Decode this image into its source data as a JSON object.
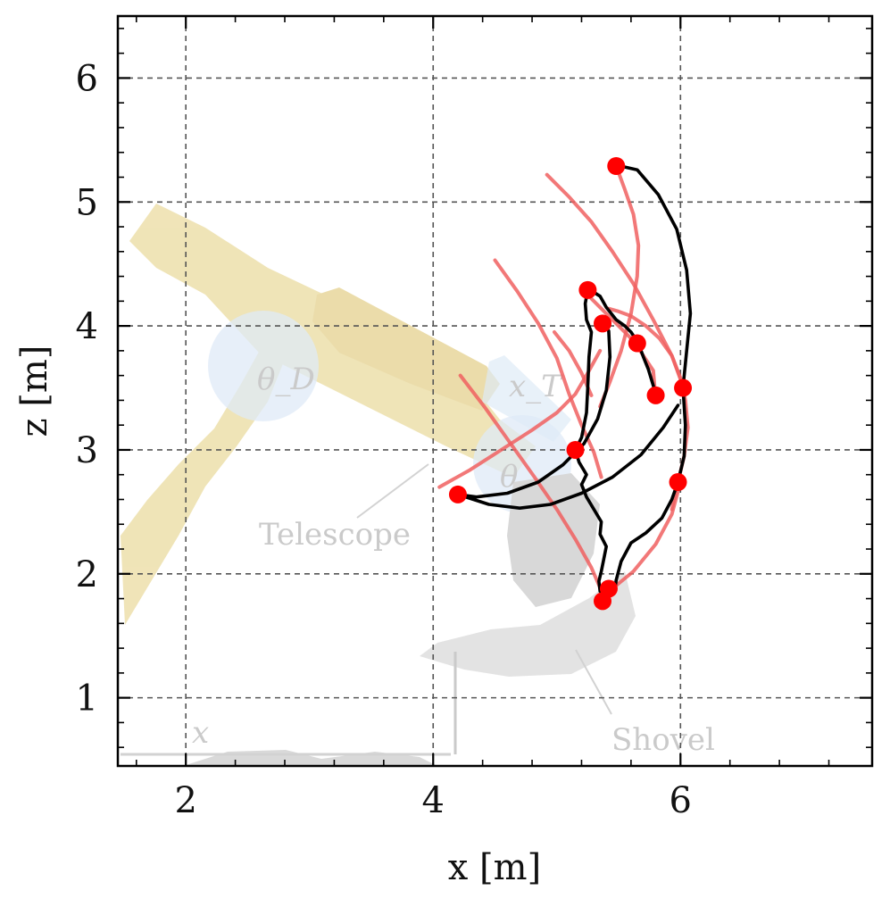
{
  "chart_data": {
    "type": "line",
    "xlabel": "x [m]",
    "ylabel": "z [m]",
    "xlim": [
      1.45,
      7.55
    ],
    "ylim": [
      0.45,
      6.5
    ],
    "xticks": [
      2,
      4,
      6
    ],
    "yticks": [
      1,
      2,
      3,
      4,
      5,
      6
    ],
    "grid": true,
    "grid_style": "dashed",
    "background_labels": [
      "Telescope",
      "Shovel",
      "x",
      "θ_D",
      "x_T",
      "θ"
    ],
    "colors": {
      "measured": "#000000",
      "reference": "#f06060",
      "waypoints": "#ff0000",
      "machine": "#ecdca0"
    },
    "waypoints": [
      {
        "x": 5.48,
        "z": 5.29
      },
      {
        "x": 5.25,
        "z": 4.29
      },
      {
        "x": 5.37,
        "z": 4.02
      },
      {
        "x": 5.65,
        "z": 3.86
      },
      {
        "x": 5.8,
        "z": 3.44
      },
      {
        "x": 6.02,
        "z": 3.5
      },
      {
        "x": 5.15,
        "z": 3.0
      },
      {
        "x": 4.2,
        "z": 2.64
      },
      {
        "x": 5.98,
        "z": 2.74
      },
      {
        "x": 5.42,
        "z": 1.88
      },
      {
        "x": 5.37,
        "z": 1.78
      }
    ],
    "series": [
      {
        "role": "measured",
        "x": [
          5.47,
          5.65,
          5.82,
          5.97,
          6.05,
          6.08,
          6.05,
          6.02,
          6.04,
          6.03,
          5.98,
          5.93,
          5.85,
          5.72,
          5.6,
          5.52,
          5.48,
          5.47
        ],
        "z": [
          5.3,
          5.26,
          5.06,
          4.78,
          4.45,
          4.1,
          3.8,
          3.5,
          3.2,
          2.95,
          2.74,
          2.6,
          2.45,
          2.33,
          2.25,
          2.1,
          1.95,
          1.88
        ]
      },
      {
        "role": "measured",
        "x": [
          5.27,
          5.35,
          5.4,
          5.48,
          5.55,
          5.6,
          5.66,
          5.7,
          5.74,
          5.78,
          5.8
        ],
        "z": [
          4.29,
          4.24,
          4.15,
          4.05,
          4.0,
          3.95,
          3.86,
          3.75,
          3.65,
          3.52,
          3.44
        ]
      },
      {
        "role": "measured",
        "x": [
          5.25,
          5.23,
          5.24,
          5.28,
          5.26,
          5.25,
          5.24,
          5.2,
          5.15,
          5.18,
          5.24,
          5.2,
          5.24,
          5.3,
          5.36,
          5.35,
          5.4,
          5.38,
          5.36,
          5.34,
          5.35
        ],
        "z": [
          4.29,
          4.18,
          4.05,
          3.95,
          3.75,
          3.5,
          3.3,
          3.1,
          3.0,
          2.9,
          2.8,
          2.72,
          2.62,
          2.52,
          2.42,
          2.32,
          2.22,
          2.12,
          2.02,
          1.94,
          1.86
        ]
      },
      {
        "role": "measured",
        "x": [
          5.37,
          5.42,
          5.43,
          5.4,
          5.33,
          5.22,
          5.05,
          4.85,
          4.6,
          4.35,
          4.2,
          4.45,
          4.7,
          4.95,
          5.2,
          5.45,
          5.68,
          5.86,
          5.98
        ],
        "z": [
          4.02,
          3.96,
          3.75,
          3.48,
          3.25,
          3.05,
          2.88,
          2.74,
          2.65,
          2.62,
          2.64,
          2.56,
          2.53,
          2.56,
          2.65,
          2.78,
          2.96,
          3.18,
          3.36
        ]
      },
      {
        "role": "reference",
        "x": [
          5.48,
          5.55,
          5.62,
          5.66,
          5.65,
          5.6,
          5.52,
          5.43,
          5.35
        ],
        "z": [
          5.29,
          5.1,
          4.9,
          4.65,
          4.4,
          4.1,
          3.8,
          3.55,
          3.35
        ]
      },
      {
        "role": "reference",
        "x": [
          5.93,
          5.98,
          6.03,
          6.06,
          6.04,
          6.0,
          5.93,
          5.83,
          5.72,
          5.6,
          5.49,
          5.42
        ],
        "z": [
          2.52,
          2.74,
          2.95,
          3.18,
          3.4,
          3.58,
          3.76,
          3.9,
          4.0,
          4.08,
          4.12,
          4.14
        ]
      },
      {
        "role": "reference",
        "x": [
          4.92,
          5.1,
          5.28,
          5.45,
          5.62,
          5.78,
          5.93,
          6.04
        ],
        "z": [
          5.22,
          5.04,
          4.84,
          4.6,
          4.34,
          4.05,
          3.76,
          3.46
        ]
      },
      {
        "role": "reference",
        "x": [
          4.5,
          4.68,
          4.85,
          5.0,
          5.1,
          5.2,
          5.3,
          5.36
        ],
        "z": [
          4.53,
          4.28,
          4.02,
          3.74,
          3.45,
          3.2,
          2.98,
          2.78
        ]
      },
      {
        "role": "reference",
        "x": [
          4.05,
          4.3,
          4.55,
          4.8,
          5.0,
          5.15,
          5.25,
          5.35
        ],
        "z": [
          2.7,
          2.84,
          3.0,
          3.16,
          3.3,
          3.45,
          3.62,
          3.8
        ]
      },
      {
        "role": "reference",
        "x": [
          4.22,
          4.42,
          4.62,
          4.82,
          5.0,
          5.15,
          5.28,
          5.38
        ],
        "z": [
          3.6,
          3.34,
          3.06,
          2.78,
          2.52,
          2.28,
          2.05,
          1.82
        ]
      },
      {
        "role": "reference",
        "x": [
          5.4,
          5.62,
          5.8,
          5.93,
          6.0
        ],
        "z": [
          1.84,
          2.02,
          2.24,
          2.48,
          2.74
        ]
      },
      {
        "role": "reference",
        "x": [
          5.28,
          5.45,
          5.62,
          5.78,
          5.8
        ],
        "z": [
          4.22,
          4.05,
          3.88,
          3.64,
          3.4
        ]
      },
      {
        "role": "reference",
        "x": [
          4.98,
          5.1,
          5.2,
          5.28
        ],
        "z": [
          3.95,
          3.8,
          3.62,
          3.44
        ]
      }
    ]
  }
}
